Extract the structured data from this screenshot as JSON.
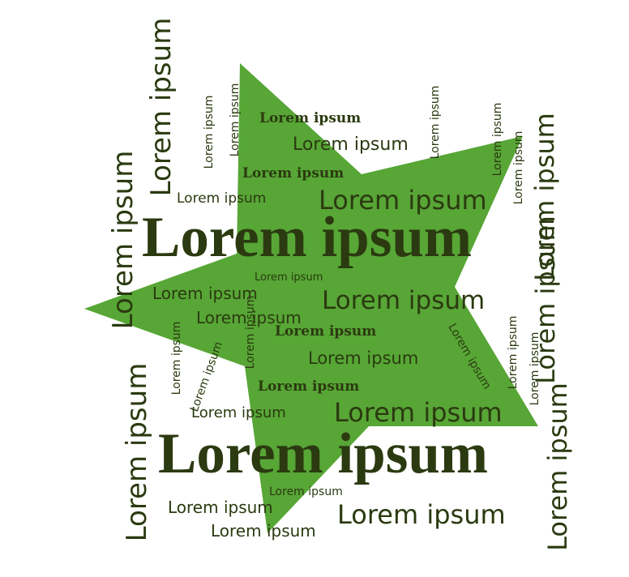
{
  "colors": {
    "background": "#ffffff",
    "star": "#57a636",
    "text": "#2b3a10"
  },
  "words": [
    "Lorem ipsum",
    "Lorem ipsum",
    "Lorem ipsum",
    "Lorem ipsum",
    "Lorem ipsum",
    "Lorem ipsum",
    "Lorem ipsum",
    "Lorem ipsum",
    "Lorem ipsum",
    "Lorem ipsum",
    "Lorem ipsum",
    "Lorem ipsum",
    "Lorem ipsum",
    "Lorem ipsum",
    "Lorem ipsum",
    "Lorem ipsum",
    "Lorem ipsum",
    "Lorem ipsum",
    "Lorem ipsum",
    "Lorem ipsum",
    "Lorem ipsum",
    "Lorem ipsum",
    "Lorem ipsum",
    "Lorem ipsum",
    "Lorem ipsum",
    "Lorem ipsum",
    "Lorem ipsum",
    "Lorem ipsum",
    "Lorem ipsum",
    "Lorem ipsum",
    "Lorem ipsum",
    "Lorem ipsum",
    "Lorem ipsum",
    "Lorem ipsum",
    "Lorem ipsum",
    "Lorem ipsum",
    "Lorem ipsum",
    "Lorem ipsum",
    "Lorem ipsum",
    "Lorem ipsum",
    "Lorem ipsum",
    "Lorem ipsum"
  ]
}
